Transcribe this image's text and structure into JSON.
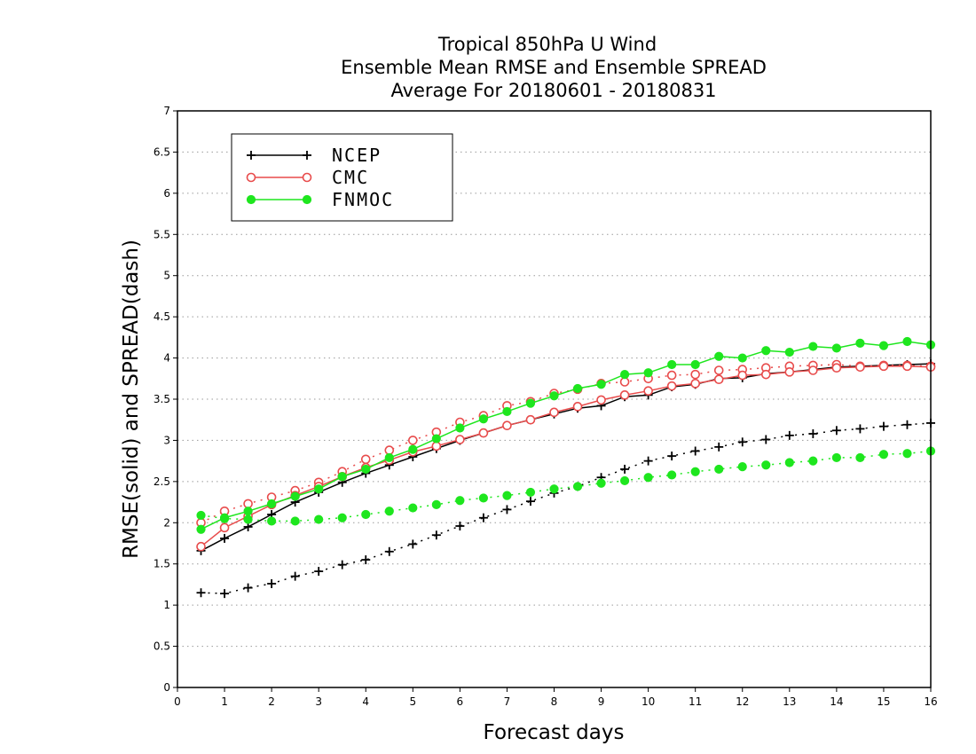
{
  "chart_data": {
    "type": "line",
    "title_lines": [
      "Tropical 850hPa U Wind",
      "Ensemble Mean RMSE and Ensemble SPREAD",
      "Average For 20180601 - 20180831"
    ],
    "xlabel": "Forecast days",
    "ylabel": "RMSE(solid) and SPREAD(dash)",
    "xlim": [
      0,
      16
    ],
    "ylim": [
      0,
      7
    ],
    "x_ticks": [
      "0",
      "1",
      "2",
      "3",
      "4",
      "5",
      "6",
      "7",
      "8",
      "9",
      "10",
      "11",
      "12",
      "13",
      "14",
      "15",
      "16"
    ],
    "y_ticks": [
      "0",
      "0.5",
      "1",
      "1.5",
      "2",
      "2.5",
      "3",
      "3.5",
      "4",
      "4.5",
      "5",
      "5.5",
      "6",
      "6.5",
      "7"
    ],
    "grid": true,
    "legend_position": "top-left",
    "x": [
      0.5,
      1,
      1.5,
      2,
      2.5,
      3,
      3.5,
      4,
      4.5,
      5,
      5.5,
      6,
      6.5,
      7,
      7.5,
      8,
      8.5,
      9,
      9.5,
      10,
      10.5,
      11,
      11.5,
      12,
      12.5,
      13,
      13.5,
      14,
      14.5,
      15,
      15.5,
      16
    ],
    "series": [
      {
        "name": "NCEP",
        "color": "#000000",
        "marker": "plus",
        "rmse": [
          1.66,
          1.81,
          1.95,
          2.1,
          2.25,
          2.37,
          2.49,
          2.6,
          2.7,
          2.8,
          2.9,
          3.0,
          3.09,
          3.18,
          3.25,
          3.32,
          3.39,
          3.42,
          3.53,
          3.55,
          3.65,
          3.68,
          3.75,
          3.76,
          3.81,
          3.83,
          3.86,
          3.89,
          3.9,
          3.91,
          3.92,
          3.93
        ],
        "spread": [
          1.15,
          1.14,
          1.21,
          1.26,
          1.35,
          1.41,
          1.49,
          1.55,
          1.65,
          1.74,
          1.85,
          1.96,
          2.06,
          2.16,
          2.26,
          2.36,
          2.44,
          2.55,
          2.65,
          2.75,
          2.81,
          2.87,
          2.92,
          2.98,
          3.01,
          3.06,
          3.08,
          3.12,
          3.14,
          3.17,
          3.19,
          3.21
        ]
      },
      {
        "name": "CMC",
        "color": "#e84c4c",
        "marker": "open-circle",
        "rmse": [
          1.71,
          1.94,
          2.08,
          2.22,
          2.33,
          2.44,
          2.56,
          2.67,
          2.76,
          2.86,
          2.93,
          3.01,
          3.09,
          3.18,
          3.25,
          3.34,
          3.41,
          3.49,
          3.55,
          3.6,
          3.66,
          3.69,
          3.74,
          3.79,
          3.8,
          3.83,
          3.85,
          3.88,
          3.89,
          3.9,
          3.9,
          3.89
        ],
        "spread": [
          2.0,
          2.14,
          2.23,
          2.31,
          2.39,
          2.49,
          2.62,
          2.77,
          2.88,
          3.0,
          3.1,
          3.22,
          3.3,
          3.42,
          3.47,
          3.57,
          3.62,
          3.69,
          3.71,
          3.75,
          3.79,
          3.8,
          3.85,
          3.86,
          3.88,
          3.9,
          3.91,
          3.92,
          3.9,
          3.91,
          3.91,
          3.9
        ]
      },
      {
        "name": "FNMOC",
        "color": "#1ee61e",
        "marker": "filled-circle",
        "rmse": [
          1.92,
          2.06,
          2.14,
          2.23,
          2.32,
          2.41,
          2.56,
          2.65,
          2.79,
          2.89,
          3.02,
          3.15,
          3.26,
          3.35,
          3.45,
          3.54,
          3.63,
          3.68,
          3.8,
          3.82,
          3.92,
          3.92,
          4.02,
          4.0,
          4.09,
          4.07,
          4.14,
          4.12,
          4.18,
          4.15,
          4.2,
          4.16
        ],
        "spread": [
          2.09,
          2.05,
          2.04,
          2.02,
          2.02,
          2.04,
          2.06,
          2.1,
          2.14,
          2.18,
          2.22,
          2.27,
          2.3,
          2.33,
          2.37,
          2.41,
          2.44,
          2.48,
          2.51,
          2.55,
          2.58,
          2.62,
          2.65,
          2.68,
          2.7,
          2.73,
          2.75,
          2.79,
          2.79,
          2.83,
          2.84,
          2.87
        ]
      }
    ]
  }
}
